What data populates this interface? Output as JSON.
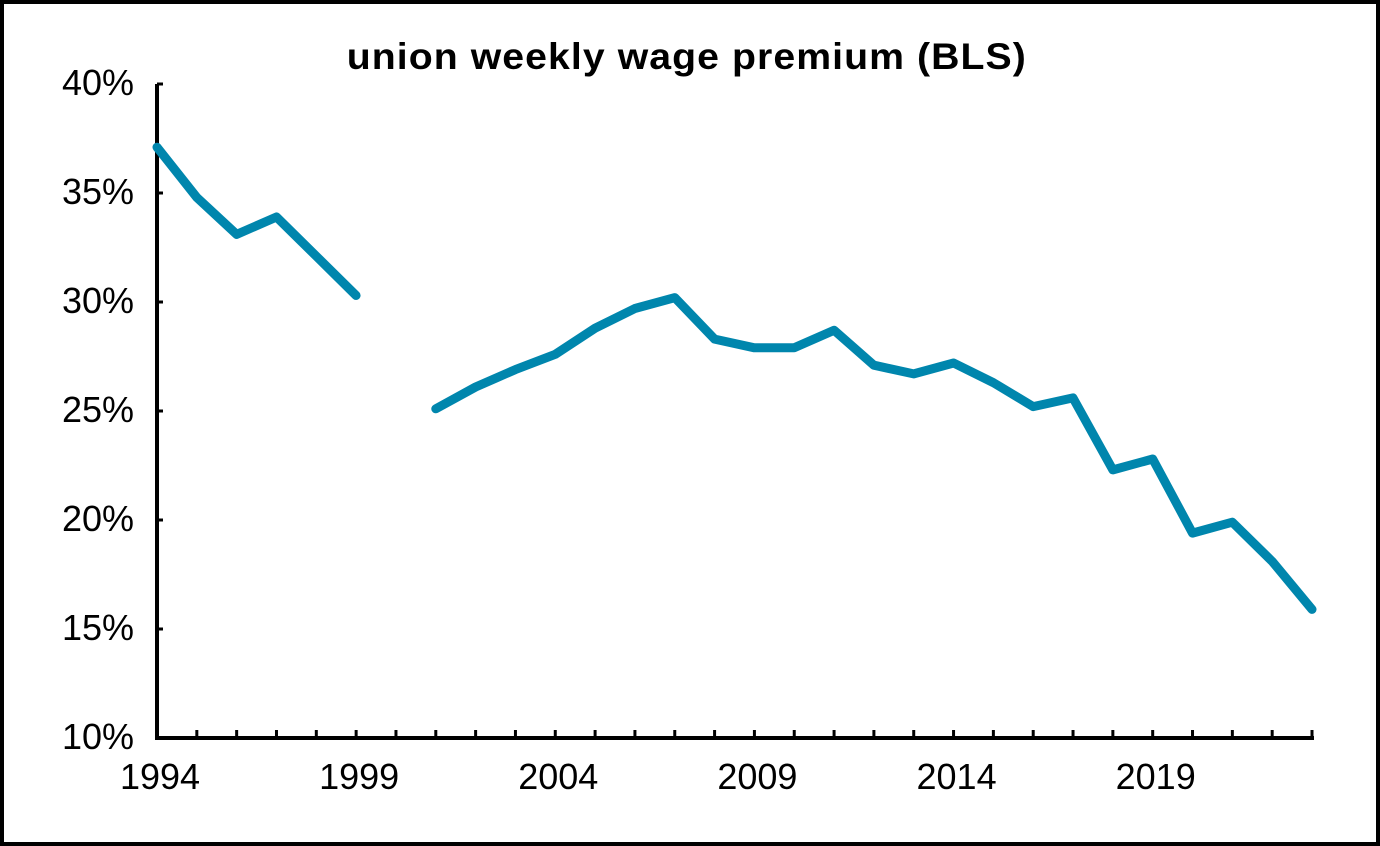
{
  "chart_data": {
    "type": "line",
    "title": "union weekly wage premium (BLS)",
    "xlabel": "",
    "ylabel": "",
    "xlim": [
      1994,
      2023
    ],
    "ylim": [
      10,
      40
    ],
    "grid": false,
    "legend": null,
    "line_color": "#0086AD",
    "y_ticks": [
      10,
      15,
      20,
      25,
      30,
      35,
      40
    ],
    "y_tick_labels": [
      "10%",
      "15%",
      "20%",
      "25%",
      "30%",
      "35%",
      "40%"
    ],
    "x_tick_labels": [
      {
        "year": 1994,
        "label": "1994"
      },
      {
        "year": 1999,
        "label": "1999"
      },
      {
        "year": 2004,
        "label": "2004"
      },
      {
        "year": 2009,
        "label": "2009"
      },
      {
        "year": 2014,
        "label": "2014"
      },
      {
        "year": 2019,
        "label": "2019"
      }
    ],
    "series": [
      {
        "name": "union weekly wage premium",
        "x": [
          1994,
          1995,
          1996,
          1997,
          1998,
          1999,
          2000,
          2001,
          2002,
          2003,
          2004,
          2005,
          2006,
          2007,
          2008,
          2009,
          2010,
          2011,
          2012,
          2013,
          2014,
          2015,
          2016,
          2017,
          2018,
          2019,
          2020,
          2021,
          2022,
          2023
        ],
        "values": [
          37.1,
          34.8,
          33.1,
          33.9,
          32.1,
          30.3,
          null,
          25.1,
          26.1,
          26.9,
          27.6,
          28.8,
          29.7,
          30.2,
          28.3,
          27.9,
          27.9,
          28.7,
          27.1,
          26.7,
          27.2,
          26.3,
          25.2,
          25.6,
          22.3,
          22.8,
          19.4,
          19.9,
          18.1,
          15.9
        ]
      }
    ]
  }
}
